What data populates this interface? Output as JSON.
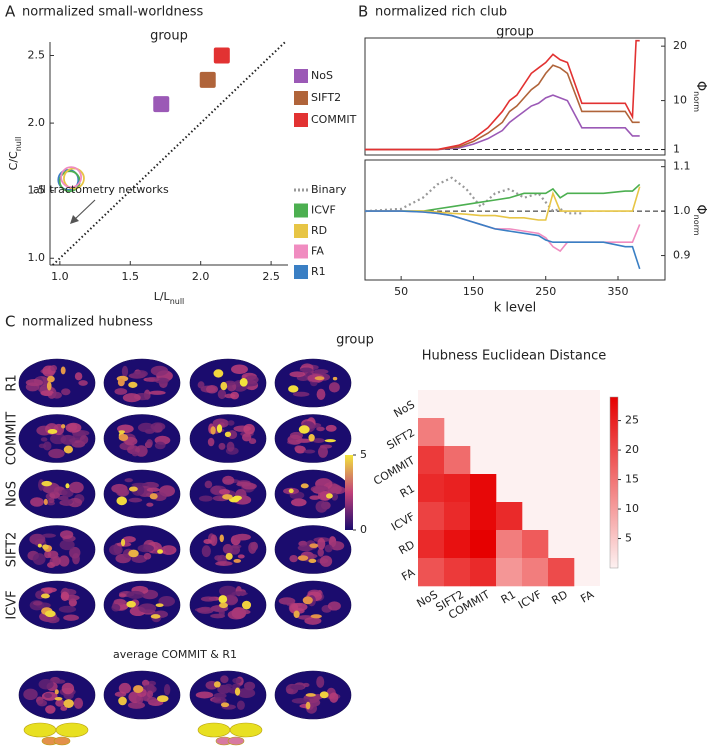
{
  "panel_labels": [
    {
      "letter": "A",
      "title": "normalized small-worldness"
    },
    {
      "letter": "B",
      "title": "normalized rich club"
    },
    {
      "letter": "C",
      "title": "normalized hubness"
    }
  ],
  "chart_data": [
    {
      "type": "scatter",
      "subtitle": "group",
      "x_label": "L/L",
      "x_label_sub": "null",
      "y_label": "C/C",
      "y_label_sub": "null",
      "xlim": [
        0.93,
        2.62
      ],
      "ylim": [
        0.95,
        2.6
      ],
      "xticks": [
        {
          "value": 1,
          "label": "1.0"
        },
        1.5,
        {
          "value": 2,
          "label": "2.0"
        },
        2.5
      ],
      "yticks": [
        {
          "value": 1,
          "label": "1.0"
        },
        1.5,
        {
          "value": 2,
          "label": "2.0"
        },
        2.5
      ],
      "identity_line": true,
      "series": [
        {
          "name": "NoS",
          "color": "#9b59b6",
          "x": [
            1.72
          ],
          "y": [
            2.14
          ]
        },
        {
          "name": "SIFT2",
          "color": "#b0643a",
          "x": [
            2.05
          ],
          "y": [
            2.32
          ]
        },
        {
          "name": "COMMIT",
          "color": "#e23232",
          "x": [
            2.15
          ],
          "y": [
            2.5
          ]
        }
      ],
      "circles": {
        "x": [
          1.06,
          1.07,
          1.1,
          1.08
        ],
        "y": [
          1.58,
          1.57,
          1.59,
          1.6
        ],
        "colors": [
          "#3a7fc4",
          "#4caf50",
          "#e7c545",
          "#f08cc0"
        ]
      },
      "annotation": "all tractometry networks"
    },
    {
      "type": "line",
      "subtitle": "group",
      "y_label": "Φ",
      "y_label_sub": "norm",
      "y_axis_side": "right",
      "xlim": [
        0,
        415
      ],
      "ylim": [
        0,
        21.5
      ],
      "yticks": [
        1,
        10,
        20
      ],
      "reference_line": 1,
      "x": [
        0,
        100,
        130,
        150,
        170,
        190,
        200,
        210,
        220,
        230,
        240,
        250,
        260,
        270,
        280,
        300,
        330,
        360,
        370,
        375,
        380
      ],
      "series": [
        {
          "color": "#9b59b6",
          "values": [
            1,
            1,
            1.3,
            2,
            3,
            4.5,
            6,
            7,
            8,
            9,
            9.5,
            10.5,
            11,
            10.5,
            10,
            5,
            5,
            5,
            3.5,
            3.5,
            3.5
          ]
        },
        {
          "color": "#b0643a",
          "values": [
            1,
            1,
            1.5,
            2.5,
            4,
            6,
            8,
            9,
            10.5,
            12,
            13,
            15,
            16.5,
            16,
            15,
            8,
            8,
            8,
            6,
            6,
            6
          ]
        },
        {
          "color": "#e23232",
          "values": [
            1,
            1,
            1.8,
            3,
            5,
            8,
            10,
            11,
            13,
            15,
            16,
            17,
            18.5,
            17.5,
            17,
            9.5,
            9.5,
            9.5,
            7,
            21,
            21
          ]
        }
      ]
    },
    {
      "type": "line",
      "x_label": "k level",
      "y_label": "Φ",
      "y_label_sub": "norm",
      "y_axis_side": "right",
      "xlim": [
        0,
        415
      ],
      "xticks": [
        50,
        150,
        250,
        350
      ],
      "ylim": [
        0.845,
        1.115
      ],
      "yticks": [
        0.9,
        {
          "value": 1,
          "label": "1.0"
        },
        1.1
      ],
      "reference_line": 1,
      "legend": "left-outside",
      "x": [
        0,
        50,
        80,
        100,
        120,
        140,
        160,
        180,
        200,
        220,
        240,
        250,
        260,
        270,
        280,
        300,
        330,
        360,
        370,
        380
      ],
      "series": [
        {
          "name": "Binary",
          "color": "#999999",
          "dash": "dotted",
          "values": [
            1,
            1.005,
            1.03,
            1.06,
            1.075,
            1.05,
            1.01,
            1.04,
            1.05,
            1.03,
            1.04,
            1.02,
            1.0,
            1.005,
            0.995,
            0.995,
            null,
            null,
            null,
            null
          ]
        },
        {
          "name": "ICVF",
          "color": "#4caf50",
          "values": [
            1,
            1,
            1,
            1.005,
            1.01,
            1.015,
            1.02,
            1.025,
            1.03,
            1.04,
            1.04,
            1.04,
            1.05,
            1.03,
            1.04,
            1.04,
            1.04,
            1.045,
            1.045,
            1.06
          ]
        },
        {
          "name": "RD",
          "color": "#e7c545",
          "values": [
            1,
            1,
            1,
            0.998,
            0.995,
            0.993,
            0.99,
            0.99,
            0.985,
            0.985,
            0.98,
            0.98,
            1.04,
            1.0,
            1.0,
            1.0,
            1.0,
            1.0,
            1.0,
            1.055
          ]
        },
        {
          "name": "FA",
          "color": "#f08cc0",
          "values": [
            1,
            1,
            0.998,
            0.995,
            0.99,
            0.98,
            0.97,
            0.96,
            0.96,
            0.955,
            0.95,
            0.94,
            0.92,
            0.91,
            0.93,
            0.93,
            0.93,
            0.93,
            0.93,
            0.97
          ]
        },
        {
          "name": "R1",
          "color": "#3a7fc4",
          "values": [
            1,
            1,
            0.998,
            0.995,
            0.99,
            0.98,
            0.97,
            0.96,
            0.955,
            0.95,
            0.945,
            0.935,
            0.93,
            0.93,
            0.93,
            0.93,
            0.93,
            0.92,
            0.92,
            0.87
          ]
        }
      ]
    },
    {
      "type": "heatmap",
      "title": "Hubness Euclidean Distance",
      "labels": [
        "NoS",
        "SIFT2",
        "COMMIT",
        "R1",
        "ICVF",
        "RD",
        "FA"
      ],
      "values": [
        [
          null,
          null,
          null,
          null,
          null,
          null,
          null
        ],
        [
          14,
          null,
          null,
          null,
          null,
          null,
          null
        ],
        [
          22,
          16,
          null,
          null,
          null,
          null,
          null
        ],
        [
          24,
          25,
          28,
          null,
          null,
          null,
          null
        ],
        [
          21,
          24,
          28,
          24,
          null,
          null,
          null
        ],
        [
          24,
          27,
          29,
          14,
          18,
          null,
          null
        ],
        [
          19,
          22,
          24,
          11,
          14,
          20,
          null
        ]
      ],
      "zlim": [
        0,
        29
      ],
      "colorbar_ticks": [
        5,
        10,
        15,
        20,
        25
      ],
      "colors": [
        "#fdf1f1",
        "#e60000"
      ]
    }
  ],
  "hubness": {
    "subtitle": "group",
    "rows": [
      "R1",
      "COMMIT",
      "NoS",
      "SIFT2",
      "ICVF"
    ],
    "average_label": "average COMMIT & R1",
    "colorbar": {
      "lim": [
        0,
        5
      ],
      "ticks": [
        0,
        5
      ],
      "colors": [
        "#1b0c6e",
        "#f3e43c"
      ]
    }
  }
}
